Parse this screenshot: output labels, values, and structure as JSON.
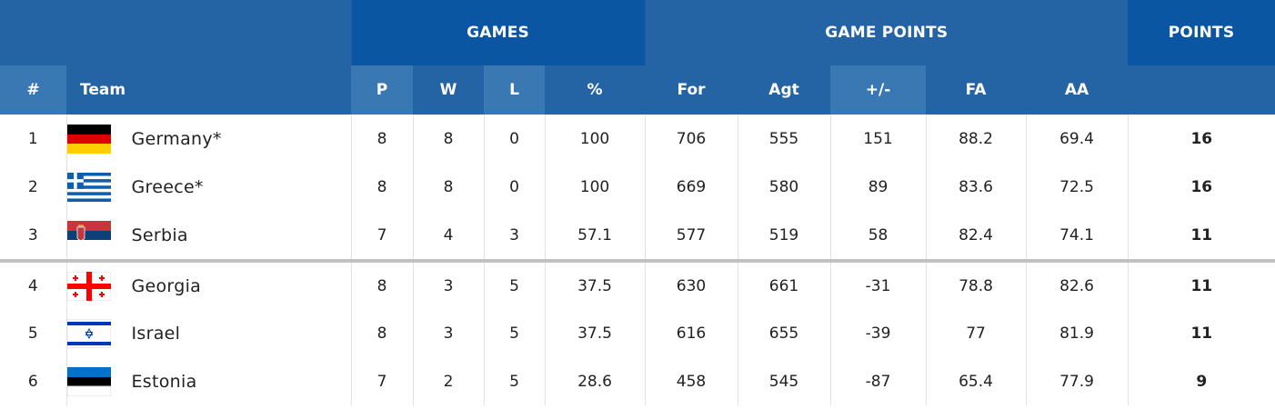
{
  "header": {
    "group_games": "GAMES",
    "group_game_points": "GAME POINTS",
    "group_points": "POINTS",
    "col_rank": "#",
    "col_team": "Team",
    "col_p": "P",
    "col_w": "W",
    "col_l": "L",
    "col_pct": "%",
    "col_for": "For",
    "col_agt": "Agt",
    "col_diff": "+/-",
    "col_fa": "FA",
    "col_aa": "AA"
  },
  "rows": [
    {
      "rank": "1",
      "team": "Germany*",
      "flag": "germany",
      "p": "8",
      "w": "8",
      "l": "0",
      "pct": "100",
      "for": "706",
      "agt": "555",
      "diff": "151",
      "fa": "88.2",
      "aa": "69.4",
      "points": "16"
    },
    {
      "rank": "2",
      "team": "Greece*",
      "flag": "greece",
      "p": "8",
      "w": "8",
      "l": "0",
      "pct": "100",
      "for": "669",
      "agt": "580",
      "diff": "89",
      "fa": "83.6",
      "aa": "72.5",
      "points": "16"
    },
    {
      "rank": "3",
      "team": "Serbia",
      "flag": "serbia",
      "p": "7",
      "w": "4",
      "l": "3",
      "pct": "57.1",
      "for": "577",
      "agt": "519",
      "diff": "58",
      "fa": "82.4",
      "aa": "74.1",
      "points": "11"
    },
    {
      "rank": "4",
      "team": "Georgia",
      "flag": "georgia",
      "p": "8",
      "w": "3",
      "l": "5",
      "pct": "37.5",
      "for": "630",
      "agt": "661",
      "diff": "-31",
      "fa": "78.8",
      "aa": "82.6",
      "points": "11"
    },
    {
      "rank": "5",
      "team": "Israel",
      "flag": "israel",
      "p": "8",
      "w": "3",
      "l": "5",
      "pct": "37.5",
      "for": "616",
      "agt": "655",
      "diff": "-39",
      "fa": "77",
      "aa": "81.9",
      "points": "11"
    },
    {
      "rank": "6",
      "team": "Estonia",
      "flag": "estonia",
      "p": "7",
      "w": "2",
      "l": "5",
      "pct": "28.6",
      "for": "458",
      "agt": "545",
      "diff": "-87",
      "fa": "65.4",
      "aa": "77.9",
      "points": "9"
    }
  ],
  "colors": {
    "header_dark": "#0b56a2",
    "header_mid": "#2463a4",
    "header_light": "#3a78b3",
    "qualification_separator": "#c2c2c2"
  }
}
